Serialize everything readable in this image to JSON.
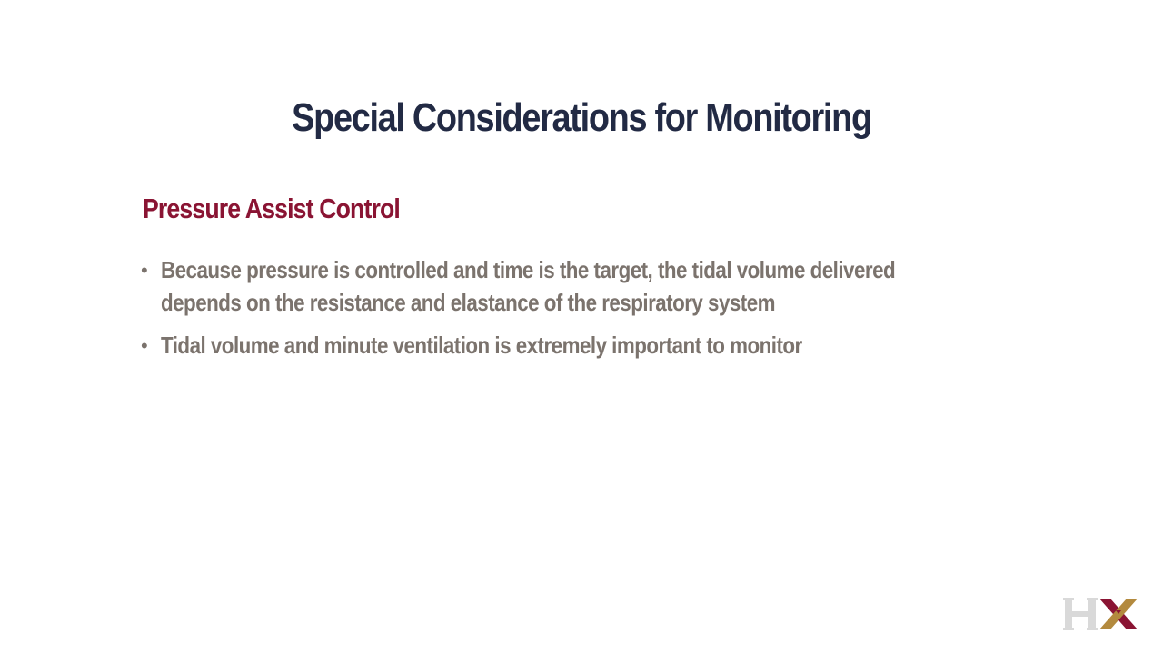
{
  "slide": {
    "title": "Special Considerations for Monitoring",
    "subtitle": "Pressure Assist Control",
    "bullets": [
      "Because pressure is controlled and time is the target, the tidal volume delivered depends on the resistance and elastance of the respiratory system",
      "Tidal volume and minute ventilation is extremely important to monitor"
    ],
    "logo": {
      "text": "HX",
      "h_color": "#d9d9d9",
      "x_color_left": "#8a1433",
      "x_color_right": "#b38a3e"
    }
  }
}
